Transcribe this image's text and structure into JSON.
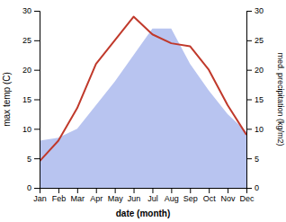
{
  "chart_data": {
    "type": "line",
    "xlabel": "date (month)",
    "ylabel": "max temp (C)",
    "y2label": "med. precipitation (kg/m2)",
    "categories": [
      "Jan",
      "Feb",
      "Mar",
      "Apr",
      "May",
      "Jun",
      "Jul",
      "Aug",
      "Sep",
      "Oct",
      "Nov",
      "Dec"
    ],
    "series": [
      {
        "type": "area",
        "color": "#b8c4f0",
        "values": [
          8.0,
          8.5,
          10.0,
          14.0,
          18.0,
          22.5,
          27.0,
          27.0,
          21.0,
          16.5,
          12.5,
          9.5
        ]
      },
      {
        "type": "line",
        "axis": "y2",
        "color": "#c0392b",
        "values": [
          4.5,
          8.0,
          13.5,
          21.0,
          25.0,
          29.0,
          26.0,
          24.5,
          24.0,
          20.0,
          14.0,
          9.0
        ]
      }
    ],
    "ylim": [
      0,
      30
    ],
    "yticks": [
      0,
      5,
      10,
      15,
      20,
      25,
      30
    ],
    "y2lim": [
      0,
      30
    ],
    "y2ticks": [
      0,
      5,
      10,
      15,
      20,
      25,
      30
    ]
  }
}
